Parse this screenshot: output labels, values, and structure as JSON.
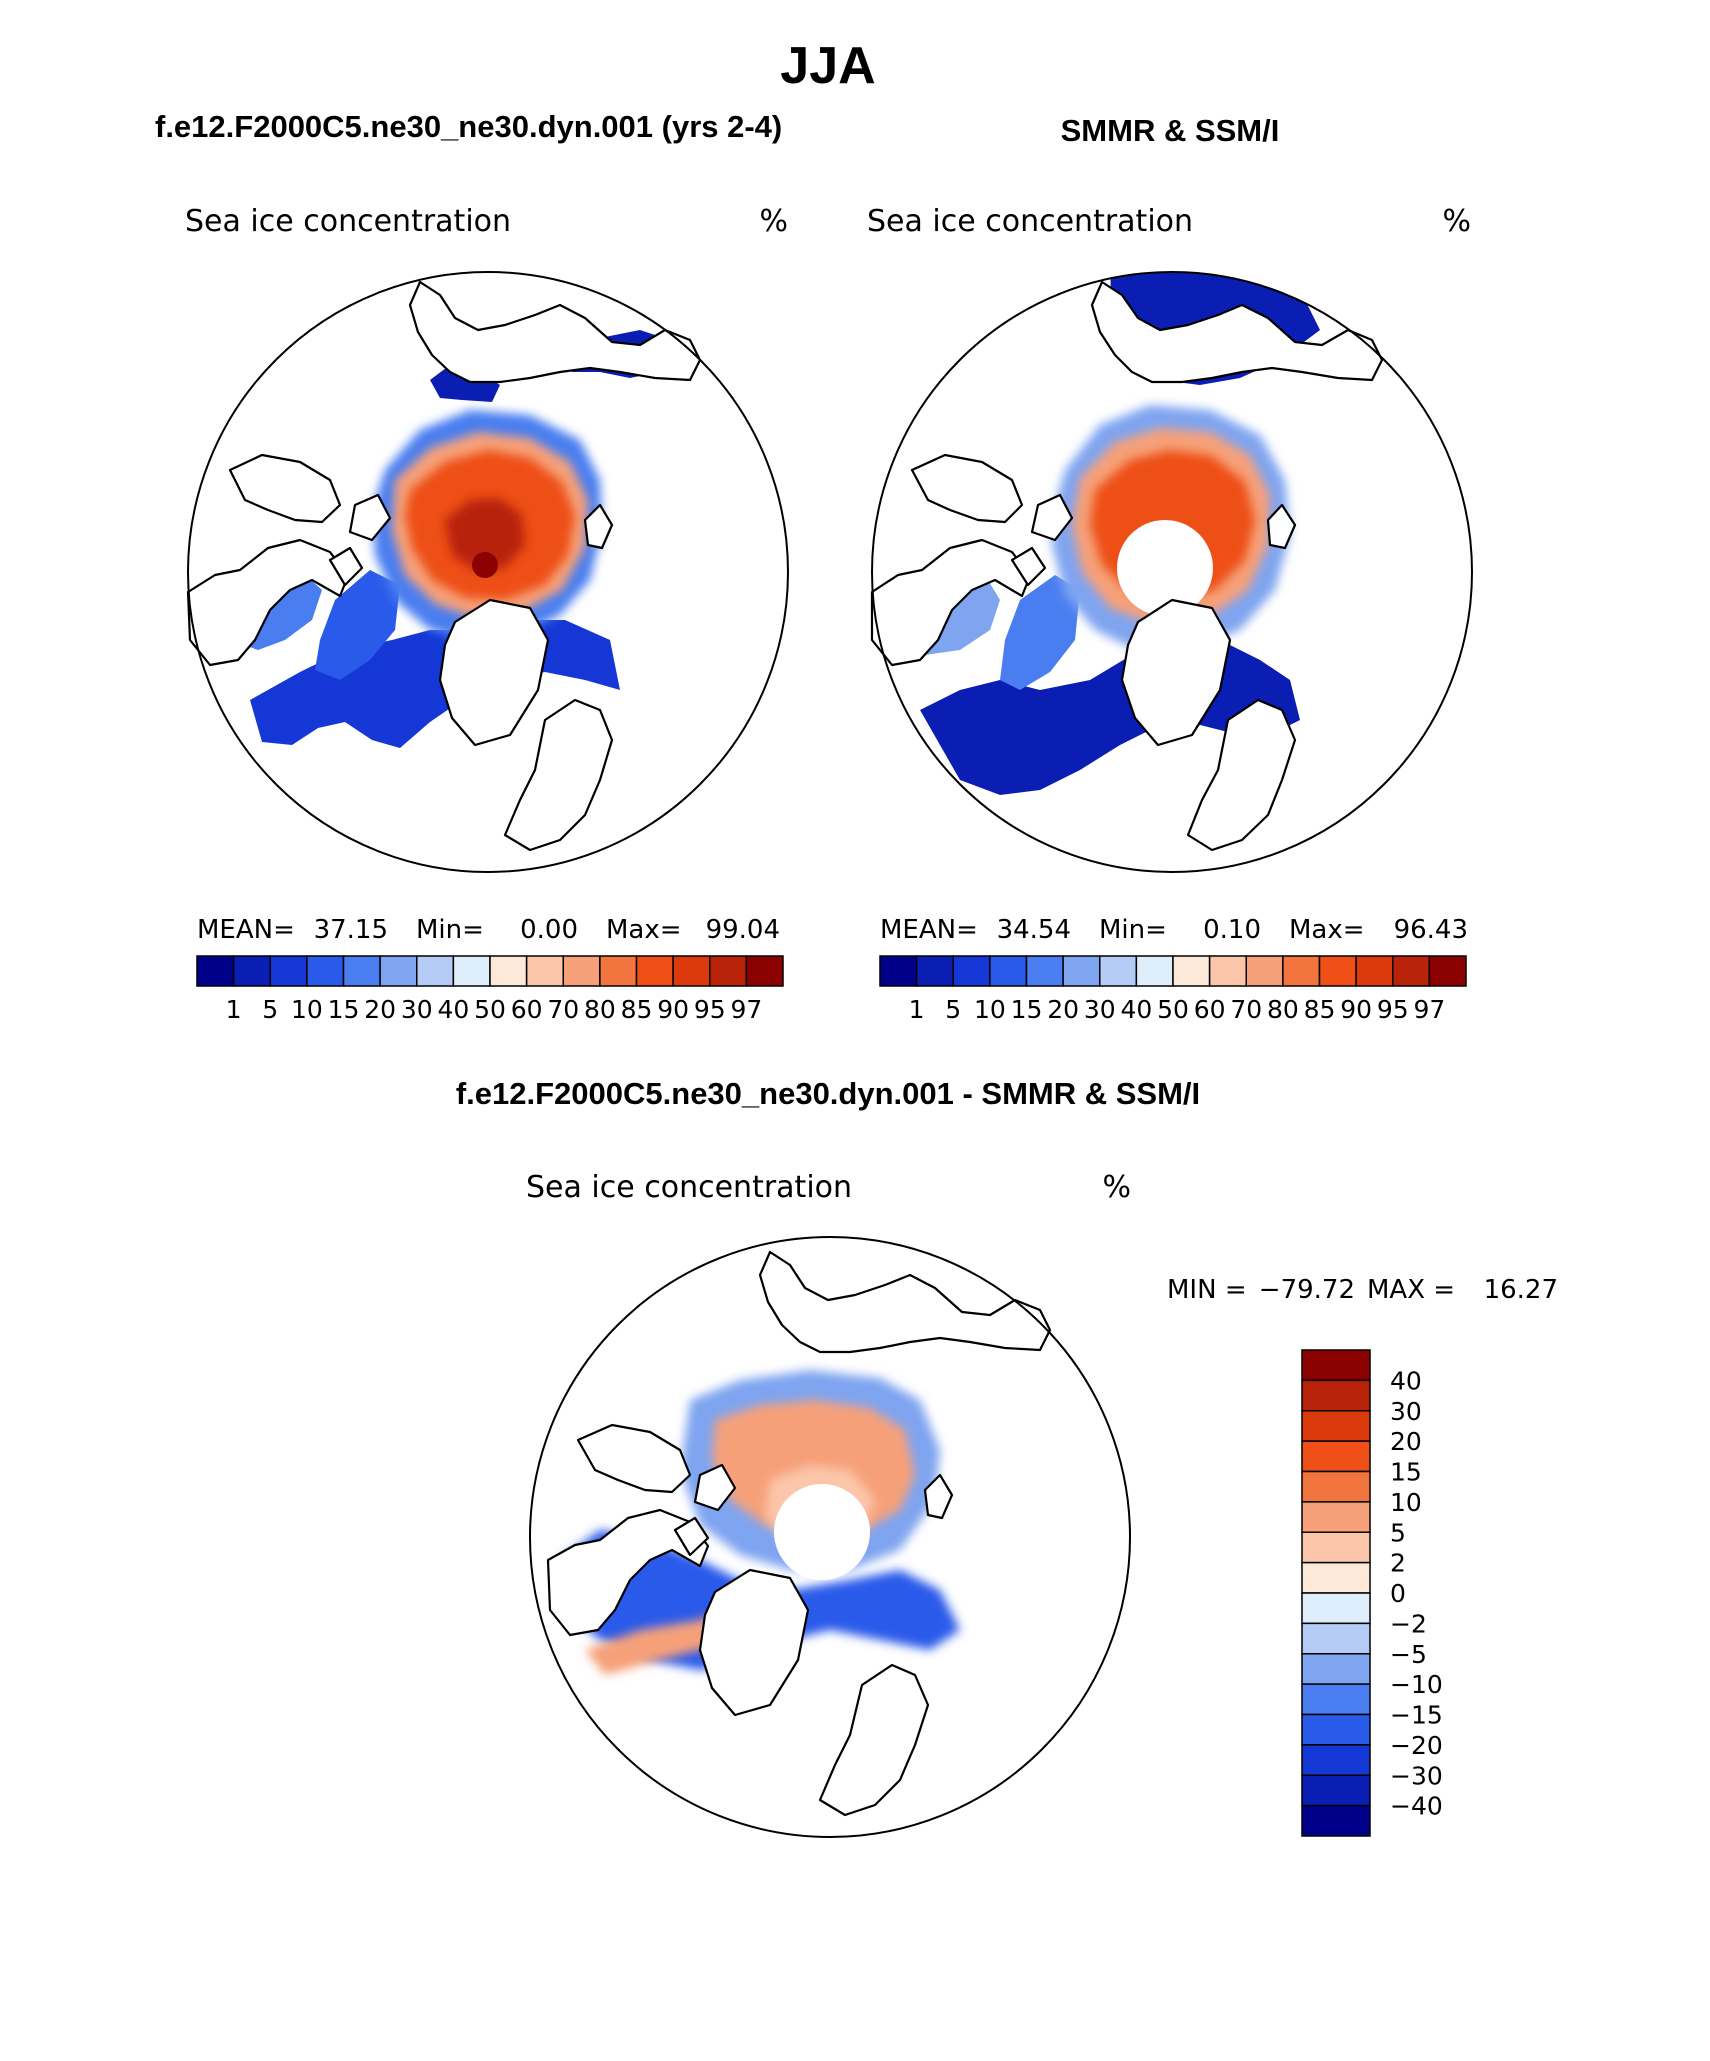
{
  "page": {
    "title": "JJA",
    "colors": {
      "background": "#ffffff",
      "ink": "#000000",
      "land": "#ffffff"
    }
  },
  "chart_data": [
    {
      "type": "heatmap",
      "projection": "north-polar-stereographic",
      "title": "f.e12.F2000C5.ne30_ne30.dyn.001 (yrs 2-4)",
      "subtitle": "Sea ice concentration",
      "units": "%",
      "stats": {
        "mean_label": "MEAN=",
        "mean": "37.15",
        "min_label": "Min=",
        "min": "0.00",
        "max_label": "Max=",
        "max": "99.04"
      },
      "levels": [
        "1",
        "5",
        "10",
        "15",
        "20",
        "30",
        "40",
        "50",
        "60",
        "70",
        "80",
        "85",
        "90",
        "95",
        "97"
      ],
      "colors": [
        "#00008b",
        "#0a1eb4",
        "#1437d6",
        "#2a5aea",
        "#4a7ef0",
        "#7fa4f0",
        "#b3cbf5",
        "#dfeefb",
        "#fde9d9",
        "#fbc6aa",
        "#f6a079",
        "#f2753f",
        "#ee5018",
        "#da3a0c",
        "#b8230a",
        "#8b0000"
      ],
      "pole_hole": false
    },
    {
      "type": "heatmap",
      "projection": "north-polar-stereographic",
      "title": "SMMR & SSM/I",
      "subtitle": "Sea ice concentration",
      "units": "%",
      "stats": {
        "mean_label": "MEAN=",
        "mean": "34.54",
        "min_label": "Min=",
        "min": "0.10",
        "max_label": "Max=",
        "max": "96.43"
      },
      "levels": [
        "1",
        "5",
        "10",
        "15",
        "20",
        "30",
        "40",
        "50",
        "60",
        "70",
        "80",
        "85",
        "90",
        "95",
        "97"
      ],
      "colors": [
        "#00008b",
        "#0a1eb4",
        "#1437d6",
        "#2a5aea",
        "#4a7ef0",
        "#7fa4f0",
        "#b3cbf5",
        "#dfeefb",
        "#fde9d9",
        "#fbc6aa",
        "#f6a079",
        "#f2753f",
        "#ee5018",
        "#da3a0c",
        "#b8230a",
        "#8b0000"
      ],
      "pole_hole": true
    },
    {
      "type": "heatmap",
      "projection": "north-polar-stereographic",
      "title": "f.e12.F2000C5.ne30_ne30.dyn.001 - SMMR & SSM/I",
      "subtitle": "Sea ice concentration",
      "units": "%",
      "stats": {
        "min_label": "MIN =",
        "min": "−79.72",
        "max_label": "MAX =",
        "max": "16.27"
      },
      "levels": [
        "40",
        "30",
        "20",
        "15",
        "10",
        "5",
        "2",
        "0",
        "−2",
        "−5",
        "−10",
        "−15",
        "−20",
        "−30",
        "−40"
      ],
      "colors": [
        "#8b0000",
        "#b8230a",
        "#da3a0c",
        "#ee5018",
        "#f2753f",
        "#f6a079",
        "#fbc6aa",
        "#fde9d9",
        "#dfeefb",
        "#b3cbf5",
        "#7fa4f0",
        "#4a7ef0",
        "#2a5aea",
        "#1437d6",
        "#0a1eb4",
        "#00008b"
      ],
      "pole_hole": true
    }
  ]
}
